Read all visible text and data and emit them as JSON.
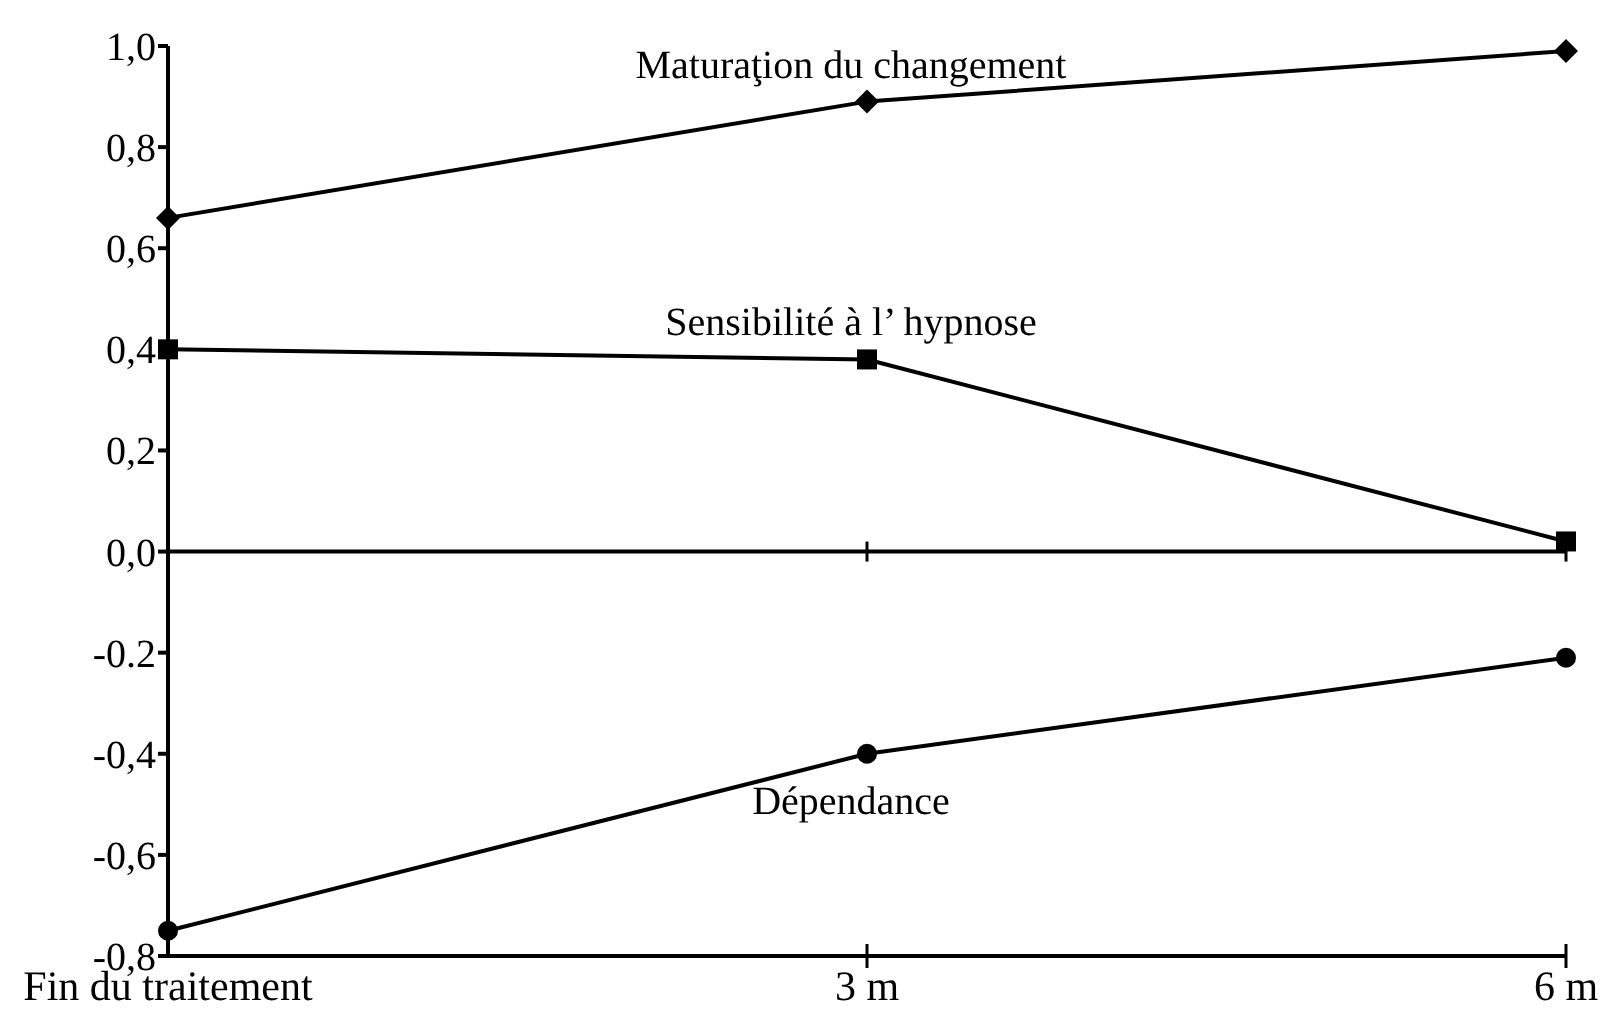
{
  "chart_data": {
    "type": "line",
    "categories": [
      "Fin du traitement",
      "3 m",
      "6 m"
    ],
    "series": [
      {
        "name": "Maturaţion du changement",
        "color": "#000000",
        "marker": "diamond",
        "values": [
          0.66,
          0.89,
          0.99
        ]
      },
      {
        "name": "Sensibilité à l’ hypnose",
        "color": "#000000",
        "marker": "square",
        "values": [
          0.4,
          0.38,
          0.02
        ]
      },
      {
        "name": "Dépendance",
        "color": "#000000",
        "marker": "circle",
        "values": [
          -0.75,
          -0.4,
          -0.21
        ]
      }
    ],
    "ylim": [
      -0.8,
      1.0
    ],
    "yticks": [
      {
        "value": -0.8,
        "label": "-0,8"
      },
      {
        "value": -0.6,
        "label": "-0,6"
      },
      {
        "value": -0.4,
        "label": "-0,4"
      },
      {
        "value": -0.2,
        "label": "-0.2"
      },
      {
        "value": 0,
        "label": "0,0"
      },
      {
        "value": 0.2,
        "label": "0,2"
      },
      {
        "value": 0.4,
        "label": "0,4"
      },
      {
        "value": 0.6,
        "label": "0,6"
      },
      {
        "value": 0.8,
        "label": "0,8"
      },
      {
        "value": 1.0,
        "label": "1,0"
      }
    ],
    "ref_lines": [
      {
        "axis": "y",
        "value": 0
      }
    ],
    "grid": false,
    "line_style": "solid"
  }
}
